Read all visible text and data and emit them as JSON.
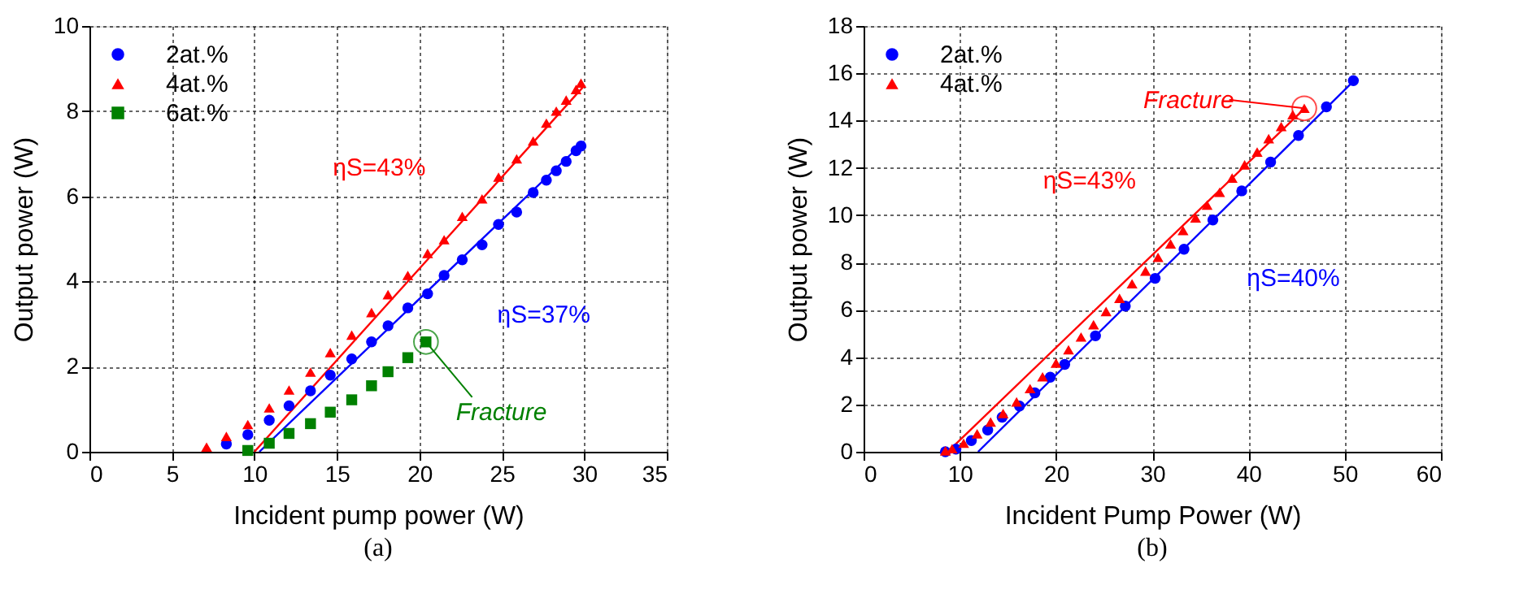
{
  "chart_data": [
    {
      "type": "scatter",
      "title": "(a)",
      "xlabel": "Incident pump power (W)",
      "ylabel": "Output power (W)",
      "xlim": [
        0,
        35
      ],
      "xticks": [
        0,
        5,
        10,
        15,
        20,
        25,
        30,
        35
      ],
      "ylim": [
        0,
        10
      ],
      "yticks": [
        0,
        2,
        4,
        6,
        8,
        10
      ],
      "grid": true,
      "legend": "top left",
      "series": [
        {
          "type": "line",
          "color": "#ff0000",
          "x": [
            10.0,
            30.0
          ],
          "values": [
            0,
            8.6
          ]
        },
        {
          "type": "line",
          "color": "#0000ff",
          "x": [
            10.3,
            30.0
          ],
          "values": [
            0,
            7.29
          ]
        },
        {
          "name": "2at.%",
          "color": "#0000ff",
          "marker": "circle",
          "x": [
            8.3,
            9.6,
            10.9,
            12.1,
            13.4,
            14.6,
            15.9,
            17.1,
            18.1,
            19.3,
            20.5,
            21.5,
            22.6,
            23.8,
            24.8,
            25.9,
            26.9,
            27.7,
            28.3,
            28.9,
            29.5,
            29.8
          ],
          "values": [
            0.18,
            0.4,
            0.74,
            1.08,
            1.43,
            1.8,
            2.18,
            2.58,
            2.96,
            3.38,
            3.71,
            4.14,
            4.51,
            4.86,
            5.34,
            5.63,
            6.09,
            6.38,
            6.6,
            6.82,
            7.07,
            7.18
          ]
        },
        {
          "name": "4at.%",
          "color": "#ff0000",
          "marker": "triangle",
          "x": [
            7.1,
            8.3,
            9.6,
            10.9,
            12.1,
            13.4,
            14.6,
            15.9,
            17.1,
            18.1,
            19.3,
            20.5,
            21.5,
            22.6,
            23.8,
            24.8,
            25.9,
            26.9,
            27.7,
            28.3,
            28.9,
            29.5,
            29.8
          ],
          "values": [
            0.11,
            0.36,
            0.64,
            1.03,
            1.45,
            1.87,
            2.33,
            2.74,
            3.27,
            3.69,
            4.14,
            4.66,
            4.98,
            5.53,
            5.94,
            6.45,
            6.88,
            7.3,
            7.72,
            8.0,
            8.26,
            8.51,
            8.66
          ]
        },
        {
          "name": "6at.%",
          "color": "#008000",
          "marker": "square",
          "x": [
            9.6,
            10.9,
            12.1,
            13.4,
            14.6,
            15.9,
            17.1,
            18.1,
            19.3,
            20.4
          ],
          "values": [
            0.03,
            0.2,
            0.43,
            0.66,
            0.93,
            1.22,
            1.55,
            1.88,
            2.21,
            2.58
          ]
        }
      ],
      "annotations": [
        "ηS=43%",
        "ηS=37%",
        {
          "text": "Fracture",
          "x": 20.4,
          "y": 2.58
        }
      ]
    },
    {
      "type": "scatter",
      "title": "(b)",
      "xlabel": "Incident Pump Power (W)",
      "ylabel": "Output power (W)",
      "xlim": [
        0,
        60
      ],
      "xticks": [
        0,
        10,
        20,
        30,
        40,
        50,
        60
      ],
      "ylim": [
        0,
        18
      ],
      "yticks": [
        0,
        2,
        4,
        6,
        8,
        10,
        12,
        14,
        16,
        18
      ],
      "grid": true,
      "legend": "top left",
      "series": [
        {
          "type": "line",
          "color": "#ff0000",
          "x": [
            9.0,
            45.8
          ],
          "values": [
            0.1,
            14.5
          ]
        },
        {
          "type": "line",
          "color": "#0000ff",
          "x": [
            11.9,
            51.0
          ],
          "values": [
            0,
            15.7
          ]
        },
        {
          "name": "2at.%",
          "color": "#0000ff",
          "marker": "circle",
          "x": [
            8.5,
            9.6,
            11.2,
            12.9,
            14.4,
            16.2,
            17.8,
            19.4,
            20.9,
            24.1,
            27.2,
            30.3,
            33.3,
            36.3,
            39.3,
            42.3,
            45.2,
            48.1,
            50.9
          ],
          "values": [
            0,
            0.11,
            0.47,
            0.92,
            1.46,
            1.93,
            2.49,
            3.15,
            3.69,
            4.9,
            6.16,
            7.33,
            8.56,
            9.8,
            11.03,
            12.25,
            13.37,
            14.58,
            15.69
          ]
        },
        {
          "name": "4at.%",
          "color": "#ff0000",
          "marker": "triangle",
          "x": [
            8.5,
            9.2,
            10.4,
            11.8,
            13.2,
            14.5,
            15.9,
            17.3,
            18.6,
            20.0,
            21.3,
            22.6,
            23.9,
            25.2,
            26.6,
            27.9,
            29.3,
            30.6,
            31.9,
            33.2,
            34.5,
            35.7,
            37.0,
            38.3,
            39.6,
            40.9,
            42.1,
            43.4,
            44.6,
            45.8
          ],
          "values": [
            0.04,
            0.13,
            0.36,
            0.76,
            1.26,
            1.62,
            2.11,
            2.67,
            3.17,
            3.75,
            4.31,
            4.85,
            5.37,
            5.93,
            6.49,
            7.1,
            7.64,
            8.22,
            8.79,
            9.35,
            9.89,
            10.43,
            10.97,
            11.57,
            12.13,
            12.67,
            13.24,
            13.75,
            14.25,
            14.52
          ]
        }
      ],
      "annotations": [
        "ηS=43%",
        "ηS=40%",
        {
          "text": "Fracture",
          "x": 45.8,
          "y": 14.52
        }
      ]
    }
  ]
}
